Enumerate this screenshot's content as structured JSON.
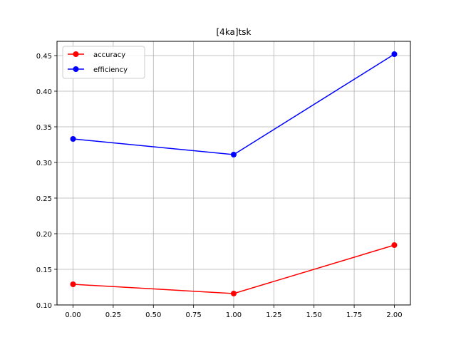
{
  "chart_data": {
    "type": "line",
    "title": "[4ka]tsk",
    "xlabel": "",
    "ylabel": "",
    "x": [
      0,
      1,
      2
    ],
    "series": [
      {
        "name": "accuracy",
        "values": [
          0.129,
          0.116,
          0.184
        ],
        "color": "#ff0000",
        "marker": "circle"
      },
      {
        "name": "efficiency",
        "values": [
          0.333,
          0.311,
          0.452
        ],
        "color": "#0000ff",
        "marker": "circle"
      }
    ],
    "xlim": [
      -0.1,
      2.1
    ],
    "ylim": [
      0.1,
      0.47
    ],
    "xticks": [
      0.0,
      0.25,
      0.5,
      0.75,
      1.0,
      1.25,
      1.5,
      1.75,
      2.0
    ],
    "xtick_labels": [
      "0.00",
      "0.25",
      "0.50",
      "0.75",
      "1.00",
      "1.25",
      "1.50",
      "1.75",
      "2.00"
    ],
    "yticks": [
      0.1,
      0.15,
      0.2,
      0.25,
      0.3,
      0.35,
      0.4,
      0.45
    ],
    "ytick_labels": [
      "0.10",
      "0.15",
      "0.20",
      "0.25",
      "0.30",
      "0.35",
      "0.40",
      "0.45"
    ],
    "grid": true,
    "legend_position": "top-left"
  }
}
